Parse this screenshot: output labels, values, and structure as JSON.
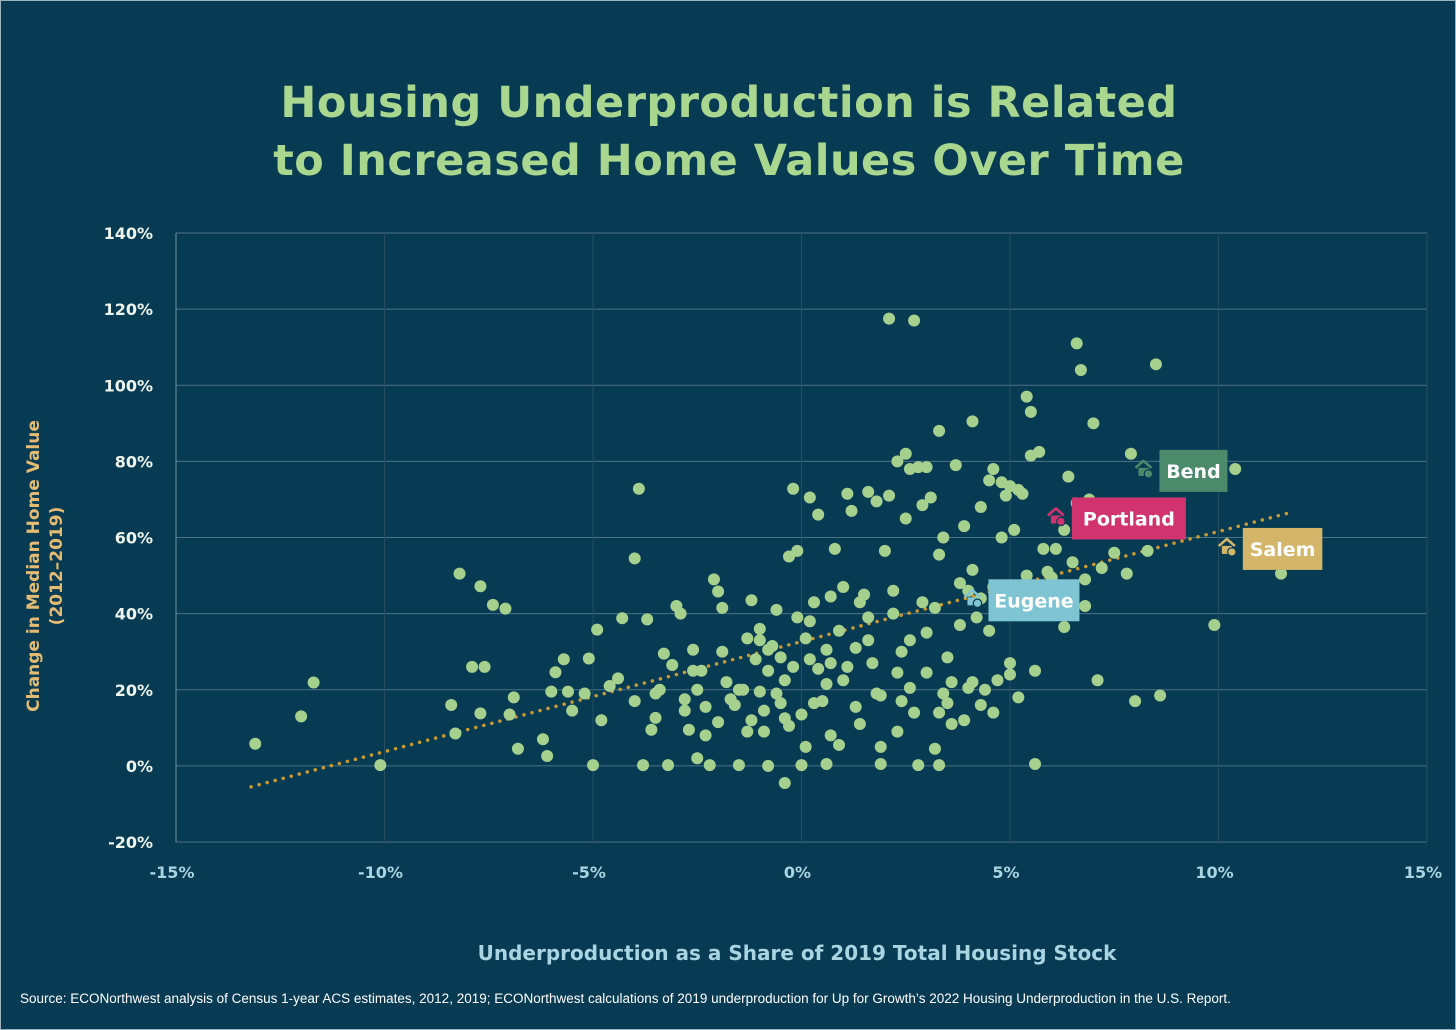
{
  "title_line1": "Housing Underproduction is Related",
  "title_line2": "to Increased Home Values Over Time",
  "source": "Source: ECONorthwest analysis of Census 1-year ACS estimates, 2012, 2019; ECONorthwest calculations of 2019 underproduction for Up for Growth’s 2022 Housing Underproduction in the U.S. Report.",
  "colors": {
    "background": "#073b53",
    "title": "#a9d78f",
    "points": "#a6d08e",
    "trendline": "#c99a34",
    "ylabel": "#e3bb72",
    "xlabel": "#a9d4e2"
  },
  "chart_data": {
    "type": "scatter",
    "xlabel": "Underproduction as a Share of 2019 Total Housing Stock",
    "ylabel_line1": "Change in Median Home Value",
    "ylabel_line2": "(2012–2019)",
    "xlim": [
      -15,
      15
    ],
    "ylim": [
      -20,
      140
    ],
    "xticks": [
      -15,
      -10,
      -5,
      0,
      5,
      10,
      15
    ],
    "xtick_labels": [
      "-15%",
      "-10%",
      "-5%",
      "0%",
      "5%",
      "10%",
      "15%"
    ],
    "yticks": [
      -20,
      0,
      20,
      40,
      60,
      80,
      100,
      120,
      140
    ],
    "ytick_labels": [
      "-20%",
      "0%",
      "20%",
      "40%",
      "60%",
      "80%",
      "100%",
      "120%",
      "140%"
    ],
    "grid": true,
    "trendline": {
      "style": "dotted",
      "x": [
        -13.2,
        11.7
      ],
      "y": [
        -5.5,
        66.5
      ]
    },
    "highlights": [
      {
        "label": "Bend",
        "x": 8.2,
        "y": 77.5,
        "color": "#4c8a6c"
      },
      {
        "label": "Portland",
        "x": 6.1,
        "y": 65,
        "color": "#d1336f"
      },
      {
        "label": "Salem",
        "x": 10.2,
        "y": 57,
        "color": "#d4b66b"
      },
      {
        "label": "Eugene",
        "x": 4.1,
        "y": 43.5,
        "color": "#7ec4d3"
      }
    ],
    "points": [
      [
        -13.1,
        5.8
      ],
      [
        -12.0,
        13.0
      ],
      [
        -11.7,
        21.9
      ],
      [
        -10.1,
        0.2
      ],
      [
        -8.4,
        16.0
      ],
      [
        -8.3,
        8.5
      ],
      [
        -8.2,
        50.5
      ],
      [
        -7.9,
        26.0
      ],
      [
        -7.7,
        47.2
      ],
      [
        -7.7,
        13.8
      ],
      [
        -7.6,
        26.0
      ],
      [
        -7.4,
        42.3
      ],
      [
        -7.1,
        41.3
      ],
      [
        -7.0,
        13.5
      ],
      [
        -6.9,
        18.0
      ],
      [
        -6.8,
        4.5
      ],
      [
        -6.2,
        7.0
      ],
      [
        -6.1,
        2.6
      ],
      [
        -6.0,
        19.5
      ],
      [
        -5.9,
        24.6
      ],
      [
        -5.7,
        28.0
      ],
      [
        -5.6,
        19.5
      ],
      [
        -5.5,
        14.5
      ],
      [
        -5.2,
        19.0
      ],
      [
        -5.1,
        28.2
      ],
      [
        -5.0,
        0.2
      ],
      [
        -4.9,
        35.8
      ],
      [
        -4.8,
        12.0
      ],
      [
        -4.6,
        21.0
      ],
      [
        -4.4,
        23.0
      ],
      [
        -4.3,
        38.8
      ],
      [
        -4.0,
        54.5
      ],
      [
        -4.0,
        17.0
      ],
      [
        -3.9,
        72.8
      ],
      [
        -3.8,
        0.2
      ],
      [
        -3.7,
        38.5
      ],
      [
        -3.6,
        9.5
      ],
      [
        -3.5,
        12.6
      ],
      [
        -3.4,
        20.0
      ],
      [
        -3.2,
        0.2
      ],
      [
        -3.1,
        26.5
      ],
      [
        -3.0,
        42.0
      ],
      [
        -2.9,
        40.0
      ],
      [
        -2.8,
        17.5
      ],
      [
        -2.7,
        9.5
      ],
      [
        -2.6,
        30.5
      ],
      [
        -2.5,
        20.0
      ],
      [
        -2.4,
        25.0
      ],
      [
        -2.3,
        15.5
      ],
      [
        -2.2,
        0.2
      ],
      [
        -2.1,
        49.0
      ],
      [
        -2.0,
        45.8
      ],
      [
        -1.9,
        41.5
      ],
      [
        -1.8,
        22.0
      ],
      [
        -1.7,
        17.5
      ],
      [
        -1.5,
        0.2
      ],
      [
        -1.4,
        20.0
      ],
      [
        -1.3,
        33.5
      ],
      [
        -1.2,
        43.5
      ],
      [
        -1.1,
        28.0
      ],
      [
        -1.0,
        36.0
      ],
      [
        -0.9,
        9.0
      ],
      [
        -0.8,
        25.0
      ],
      [
        -0.7,
        31.5
      ],
      [
        -0.6,
        41.0
      ],
      [
        -0.5,
        16.5
      ],
      [
        -0.4,
        22.5
      ],
      [
        -0.3,
        55.0
      ],
      [
        -0.2,
        72.8
      ],
      [
        -0.1,
        39.0
      ],
      [
        0.0,
        0.2
      ],
      [
        -0.3,
        10.5
      ],
      [
        -0.6,
        19.0
      ],
      [
        -0.9,
        14.5
      ],
      [
        -1.2,
        12.0
      ],
      [
        -0.4,
        12.5
      ],
      [
        0.1,
        33.5
      ],
      [
        0.2,
        28.0
      ],
      [
        0.3,
        43.0
      ],
      [
        0.4,
        25.5
      ],
      [
        0.5,
        17.0
      ],
      [
        0.6,
        30.5
      ],
      [
        0.7,
        8.0
      ],
      [
        0.8,
        57.0
      ],
      [
        0.9,
        35.5
      ],
      [
        1.0,
        22.5
      ],
      [
        1.1,
        71.5
      ],
      [
        1.2,
        67.0
      ],
      [
        1.3,
        15.5
      ],
      [
        1.4,
        11.0
      ],
      [
        1.5,
        45.0
      ],
      [
        1.6,
        39.0
      ],
      [
        1.7,
        27.0
      ],
      [
        1.8,
        19.0
      ],
      [
        1.9,
        5.0
      ],
      [
        2.0,
        56.5
      ],
      [
        2.1,
        71.0
      ],
      [
        2.2,
        46.0
      ],
      [
        2.3,
        24.5
      ],
      [
        2.4,
        30.0
      ],
      [
        2.5,
        65.0
      ],
      [
        2.6,
        33.0
      ],
      [
        2.7,
        14.0
      ],
      [
        2.8,
        0.2
      ],
      [
        2.9,
        43.0
      ],
      [
        3.0,
        35.0
      ],
      [
        3.1,
        70.5
      ],
      [
        3.2,
        41.5
      ],
      [
        3.3,
        55.5
      ],
      [
        3.4,
        19.0
      ],
      [
        3.5,
        28.5
      ],
      [
        3.6,
        11.0
      ],
      [
        3.7,
        79.0
      ],
      [
        3.8,
        37.0
      ],
      [
        3.9,
        63.0
      ],
      [
        4.0,
        46.0
      ],
      [
        4.1,
        22.0
      ],
      [
        4.2,
        39.0
      ],
      [
        4.3,
        16.0
      ],
      [
        4.4,
        20.0
      ],
      [
        4.5,
        35.5
      ],
      [
        4.6,
        47.0
      ],
      [
        4.7,
        22.5
      ],
      [
        4.8,
        60.0
      ],
      [
        4.9,
        71.0
      ],
      [
        5.0,
        24.0
      ],
      [
        5.1,
        62.0
      ],
      [
        5.2,
        18.0
      ],
      [
        5.3,
        71.5
      ],
      [
        5.4,
        50.0
      ],
      [
        5.5,
        81.5
      ],
      [
        5.6,
        0.5
      ],
      [
        5.7,
        82.5
      ],
      [
        5.8,
        57.0
      ],
      [
        5.9,
        51.0
      ],
      [
        6.0,
        49.5
      ],
      [
        6.1,
        57.0
      ],
      [
        6.2,
        41.0
      ],
      [
        6.3,
        36.5
      ],
      [
        6.4,
        76.0
      ],
      [
        6.5,
        53.5
      ],
      [
        6.6,
        111.0
      ],
      [
        6.7,
        104.0
      ],
      [
        6.8,
        49.0
      ],
      [
        6.9,
        70.0
      ],
      [
        7.0,
        90.0
      ],
      [
        7.1,
        22.5
      ],
      [
        7.2,
        52.0
      ],
      [
        7.5,
        56.0
      ],
      [
        7.8,
        50.5
      ],
      [
        7.9,
        82.0
      ],
      [
        8.0,
        17.0
      ],
      [
        8.3,
        56.5
      ],
      [
        8.5,
        105.5
      ],
      [
        8.6,
        18.5
      ],
      [
        9.9,
        37.0
      ],
      [
        10.4,
        78.0
      ],
      [
        11.5,
        50.5
      ],
      [
        2.1,
        117.5
      ],
      [
        2.7,
        117.0
      ],
      [
        2.3,
        80.0
      ],
      [
        2.5,
        82.0
      ],
      [
        2.6,
        78.0
      ],
      [
        2.8,
        78.5
      ],
      [
        3.0,
        78.5
      ],
      [
        3.3,
        88.0
      ],
      [
        4.1,
        90.5
      ],
      [
        5.4,
        97.0
      ],
      [
        5.5,
        93.0
      ],
      [
        4.5,
        75.0
      ],
      [
        4.8,
        74.5
      ],
      [
        5.0,
        73.5
      ],
      [
        5.2,
        72.5
      ],
      [
        4.6,
        78.0
      ],
      [
        6.3,
        62.0
      ],
      [
        6.6,
        69.0
      ],
      [
        6.8,
        42.0
      ],
      [
        4.3,
        68.0
      ],
      [
        4.1,
        51.5
      ],
      [
        3.8,
        48.0
      ],
      [
        3.4,
        60.0
      ],
      [
        2.9,
        68.5
      ],
      [
        1.6,
        72.0
      ],
      [
        1.8,
        69.5
      ],
      [
        0.4,
        66.0
      ],
      [
        0.2,
        70.5
      ],
      [
        -0.1,
        56.5
      ],
      [
        1.0,
        47.0
      ],
      [
        1.4,
        43.0
      ],
      [
        2.2,
        40.0
      ],
      [
        -1.9,
        30.0
      ],
      [
        -2.6,
        25.0
      ],
      [
        -3.3,
        29.5
      ],
      [
        -3.5,
        19.0
      ],
      [
        -2.8,
        14.5
      ],
      [
        -2.3,
        8.0
      ],
      [
        -1.6,
        16.0
      ],
      [
        -1.0,
        19.5
      ],
      [
        -0.5,
        28.5
      ],
      [
        0.3,
        16.5
      ],
      [
        0.6,
        21.5
      ],
      [
        1.1,
        26.0
      ],
      [
        1.6,
        33.0
      ],
      [
        1.9,
        18.5
      ],
      [
        2.6,
        20.5
      ],
      [
        3.0,
        24.5
      ],
      [
        3.5,
        16.5
      ],
      [
        3.9,
        12.0
      ],
      [
        3.6,
        22.0
      ],
      [
        3.3,
        14.0
      ],
      [
        4.0,
        20.5
      ],
      [
        5.6,
        25.0
      ],
      [
        0.0,
        13.5
      ],
      [
        -0.8,
        30.5
      ],
      [
        0.2,
        38.0
      ],
      [
        0.7,
        44.5
      ],
      [
        0.1,
        5.0
      ],
      [
        0.9,
        5.5
      ],
      [
        1.9,
        0.5
      ],
      [
        2.3,
        9.0
      ],
      [
        3.2,
        4.5
      ],
      [
        0.6,
        0.5
      ],
      [
        -0.4,
        -4.5
      ],
      [
        -0.8,
        0.0
      ],
      [
        -1.3,
        9.0
      ],
      [
        -2.5,
        2.0
      ],
      [
        -2.0,
        11.5
      ],
      [
        -1.5,
        20.0
      ],
      [
        -1.0,
        33.0
      ],
      [
        -0.2,
        26.0
      ],
      [
        0.7,
        27.0
      ],
      [
        1.3,
        31.0
      ],
      [
        2.4,
        17.0
      ],
      [
        3.3,
        0.2
      ],
      [
        4.3,
        44.0
      ],
      [
        4.6,
        14.0
      ],
      [
        5.0,
        27.0
      ],
      [
        5.5,
        45.0
      ]
    ]
  }
}
